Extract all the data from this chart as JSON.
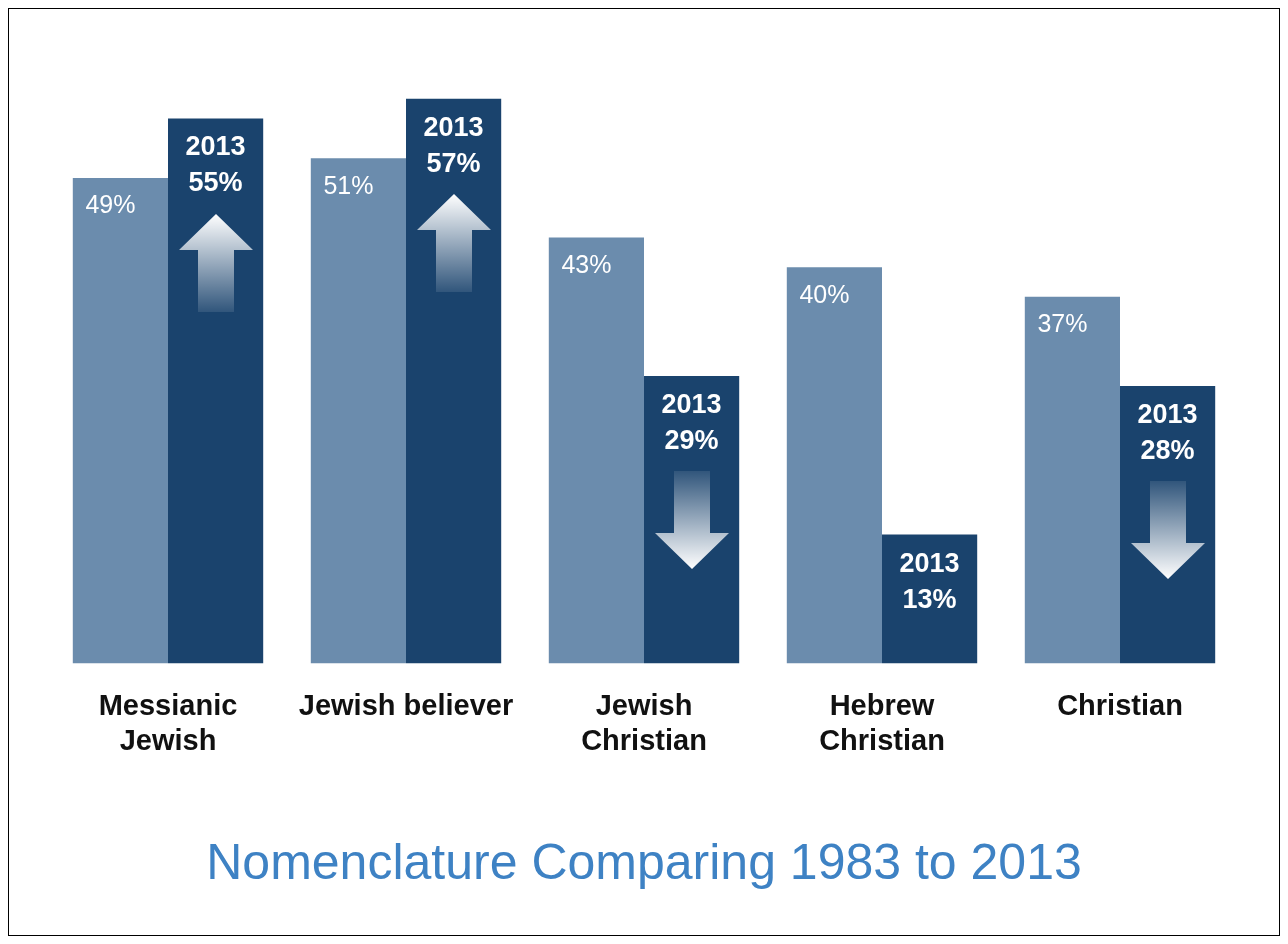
{
  "chart_data": {
    "type": "bar",
    "title": "Nomenclature Comparing 1983 to 2013",
    "categories": [
      "Messianic Jewish",
      "Jewish believer",
      "Jewish Christian",
      "Hebrew Christian",
      "Christian"
    ],
    "series": [
      {
        "color": "#6b8cad",
        "values": [
          49,
          51,
          43,
          40,
          37
        ],
        "value_labels": [
          "49%",
          "51%",
          "43%",
          "40%",
          "37%"
        ]
      },
      {
        "name": "2013",
        "color": "#1a436d",
        "values": [
          55,
          57,
          29,
          13,
          28
        ],
        "value_labels": [
          "55%",
          "57%",
          "29%",
          "13%",
          "28%"
        ]
      }
    ],
    "grid": false,
    "legend": false
  }
}
